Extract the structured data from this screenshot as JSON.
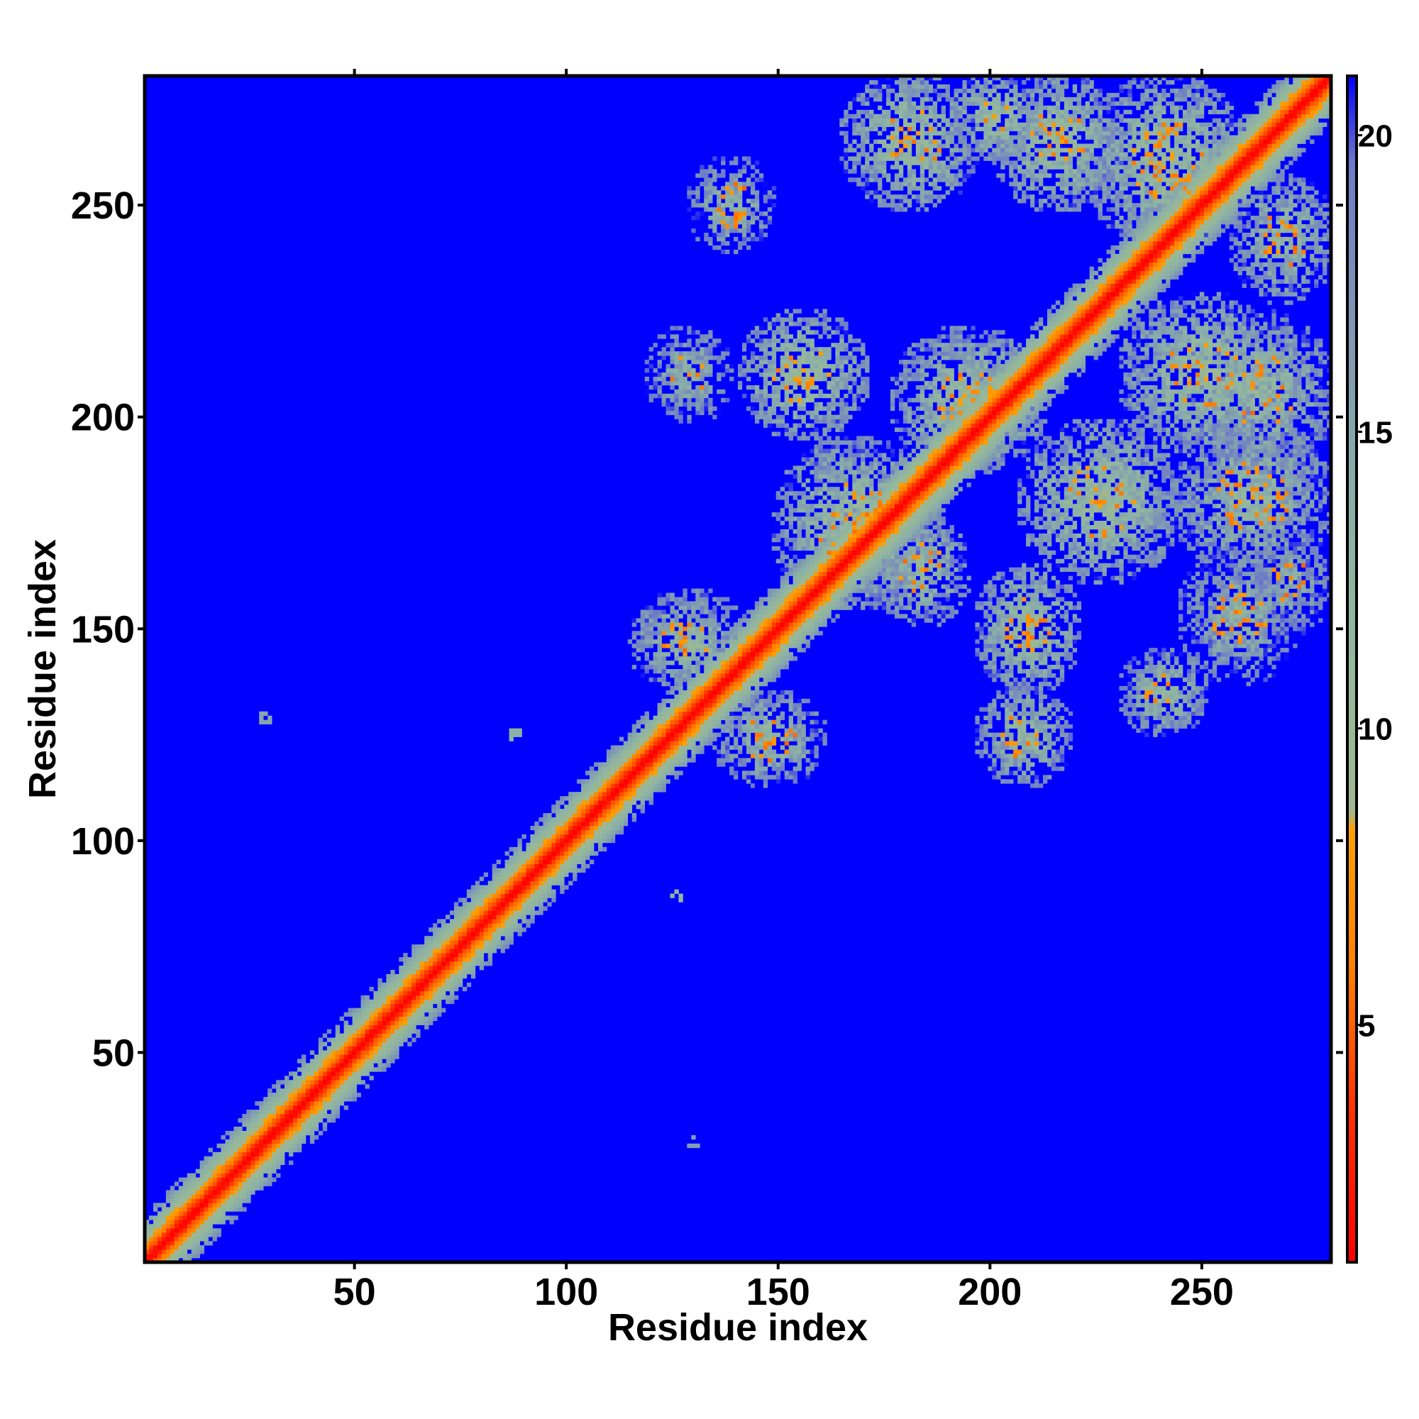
{
  "chart_data": {
    "type": "heatmap",
    "subtype": "residue-distance-map",
    "title": "",
    "xlabel": "Residue index",
    "ylabel": "Residue index",
    "n_residues": 280,
    "xlim": [
      1,
      280
    ],
    "ylim": [
      1,
      280
    ],
    "x_ticks": [
      50,
      100,
      150,
      200,
      250
    ],
    "y_ticks": [
      50,
      100,
      150,
      200,
      250
    ],
    "colorbar": {
      "range": [
        1,
        21
      ],
      "ticks": [
        5,
        10,
        15,
        20
      ],
      "saturated_color": "#0000ff",
      "stops": [
        {
          "value": 1,
          "color": "#ff0000"
        },
        {
          "value": 3.5,
          "color": "#ff3000"
        },
        {
          "value": 6,
          "color": "#ff8000"
        },
        {
          "value": 8.3,
          "color": "#ffa000"
        },
        {
          "value": 8.6,
          "color": "#a0b890"
        },
        {
          "value": 11,
          "color": "#94b89c"
        },
        {
          "value": 14,
          "color": "#8aaea8"
        },
        {
          "value": 17,
          "color": "#7e96b4"
        },
        {
          "value": 19.5,
          "color": "#6e7cc8"
        },
        {
          "value": 21,
          "color": "#0000ff"
        }
      ]
    },
    "diagonal_band": {
      "core_value": 1,
      "half_width_residues": 11
    },
    "contact_blocks": [
      {
        "x": [
          128,
          150
        ],
        "y": [
          238,
          262
        ],
        "min_value": 9
      },
      {
        "x": [
          118,
          140
        ],
        "y": [
          198,
          222
        ],
        "min_value": 9
      },
      {
        "x": [
          140,
          172
        ],
        "y": [
          194,
          226
        ],
        "min_value": 7
      },
      {
        "x": [
          164,
          198
        ],
        "y": [
          248,
          282
        ],
        "min_value": 7
      },
      {
        "x": [
          190,
          212
        ],
        "y": [
          260,
          282
        ],
        "min_value": 7
      },
      {
        "x": [
          200,
          232
        ],
        "y": [
          248,
          282
        ],
        "min_value": 7
      },
      {
        "x": [
          222,
          262
        ],
        "y": [
          238,
          282
        ],
        "min_value": 7
      },
      {
        "x": [
          176,
          214
        ],
        "y": [
          186,
          222
        ],
        "min_value": 7
      },
      {
        "x": [
          206,
          246
        ],
        "y": [
          160,
          200
        ],
        "min_value": 7
      },
      {
        "x": [
          230,
          270
        ],
        "y": [
          190,
          230
        ],
        "min_value": 7
      },
      {
        "x": [
          246,
          282
        ],
        "y": [
          186,
          226
        ],
        "min_value": 8
      },
      {
        "x": [
          256,
          282
        ],
        "y": [
          226,
          258
        ],
        "min_value": 8
      },
      {
        "x": [
          242,
          282
        ],
        "y": [
          162,
          200
        ],
        "min_value": 8
      },
      {
        "x": [
          148,
          188
        ],
        "y": [
          154,
          196
        ],
        "min_value": 7
      },
      {
        "x": [
          114,
          144
        ],
        "y": [
          134,
          160
        ],
        "min_value": 8
      },
      {
        "x": [
          134,
          162
        ],
        "y": [
          112,
          136
        ],
        "min_value": 8
      },
      {
        "x": [
          172,
          196
        ],
        "y": [
          150,
          178
        ],
        "min_value": 8
      },
      {
        "x": [
          196,
          222
        ],
        "y": [
          134,
          166
        ],
        "min_value": 7
      },
      {
        "x": [
          196,
          220
        ],
        "y": [
          112,
          138
        ],
        "min_value": 8
      },
      {
        "x": [
          230,
          252
        ],
        "y": [
          124,
          146
        ],
        "min_value": 8
      },
      {
        "x": [
          244,
          274
        ],
        "y": [
          136,
          170
        ],
        "min_value": 9
      },
      {
        "x": [
          260,
          282
        ],
        "y": [
          148,
          174
        ],
        "min_value": 10
      }
    ],
    "isolated_contacts": [
      {
        "x": 29,
        "y": 129,
        "value": 15
      },
      {
        "x": 88,
        "y": 125,
        "value": 13
      },
      {
        "x": 126,
        "y": 87,
        "value": 12
      },
      {
        "x": 130,
        "y": 29,
        "value": 16
      }
    ]
  }
}
